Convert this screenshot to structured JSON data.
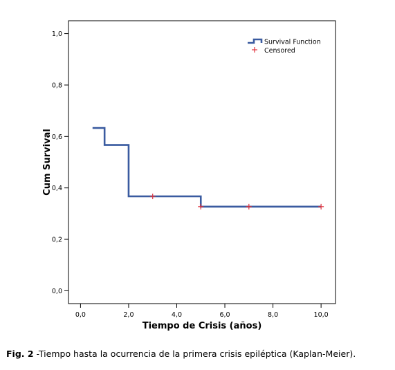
{
  "chart_data": {
    "type": "line",
    "subtype": "kaplan-meier step",
    "xlabel": "Tiempo de Crisis (años)",
    "ylabel": "Cum Survival",
    "xlim": [
      -0.5,
      10.6
    ],
    "ylim": [
      -0.05,
      1.05
    ],
    "x_ticks": [
      "0,0",
      "2,0",
      "4,0",
      "6,0",
      "8,0",
      "10,0"
    ],
    "x_tick_values": [
      0,
      2,
      4,
      6,
      8,
      10
    ],
    "y_ticks": [
      "0,0",
      "0,2",
      "0,4",
      "0,6",
      "0,8",
      "1,0"
    ],
    "y_tick_values": [
      0,
      0.2,
      0.4,
      0.6,
      0.8,
      1.0
    ],
    "grid": false,
    "legend_position": "top-right",
    "series": [
      {
        "name": "Survival Function",
        "color": "#3a5ba0",
        "steps": [
          {
            "x": 0.5,
            "y": 0.633
          },
          {
            "x": 1.0,
            "y": 0.567
          },
          {
            "x": 2.0,
            "y": 0.367
          },
          {
            "x": 5.0,
            "y": 0.327
          },
          {
            "x": 10.0,
            "y": 0.327
          }
        ]
      },
      {
        "name": "Censored",
        "color": "#e0323c",
        "points": [
          {
            "x": 3.0,
            "y": 0.367
          },
          {
            "x": 5.0,
            "y": 0.327
          },
          {
            "x": 7.0,
            "y": 0.327
          },
          {
            "x": 10.0,
            "y": 0.327
          }
        ]
      }
    ]
  },
  "caption": {
    "label": "Fig. 2",
    "text": " -Tiempo hasta la ocurrencia de la primera crisis epiléptica (Kaplan-Meier)."
  }
}
